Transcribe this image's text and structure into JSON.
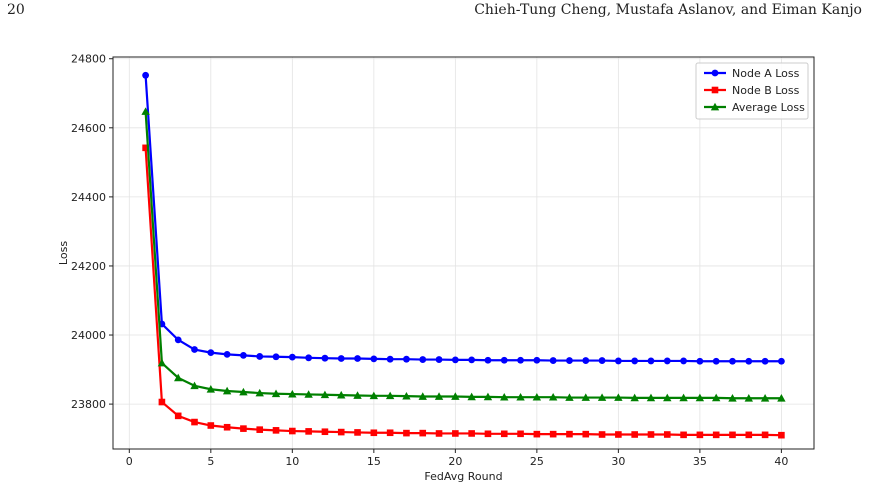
{
  "header": {
    "page_number": "20",
    "authors": "Chieh-Tung Cheng, Mustafa Aslanov, and Eiman Kanjo"
  },
  "chart_data": {
    "type": "line",
    "title": "",
    "xlabel": "FedAvg Round",
    "ylabel": "Loss",
    "xlim": [
      -1,
      42
    ],
    "ylim": [
      23670,
      24805
    ],
    "xticks": [
      0,
      5,
      10,
      15,
      20,
      25,
      30,
      35,
      40
    ],
    "yticks": [
      23800,
      24000,
      24200,
      24400,
      24600,
      24800
    ],
    "grid": true,
    "legend_position": "top-right",
    "x": [
      1,
      2,
      3,
      4,
      5,
      6,
      7,
      8,
      9,
      10,
      11,
      12,
      13,
      14,
      15,
      16,
      17,
      18,
      19,
      20,
      21,
      22,
      23,
      24,
      25,
      26,
      27,
      28,
      29,
      30,
      31,
      32,
      33,
      34,
      35,
      36,
      37,
      38,
      39,
      40
    ],
    "series": [
      {
        "name": "Node A Loss",
        "color": "#0000ff",
        "marker": "circle",
        "values": [
          24752,
          24032,
          23986,
          23958,
          23949,
          23944,
          23941,
          23938,
          23937,
          23936,
          23934,
          23933,
          23932,
          23932,
          23931,
          23930,
          23930,
          23929,
          23929,
          23928,
          23928,
          23927,
          23927,
          23927,
          23927,
          23926,
          23926,
          23926,
          23926,
          23925,
          23925,
          23925,
          23925,
          23925,
          23924,
          23924,
          23924,
          23924,
          23924,
          23924
        ]
      },
      {
        "name": "Node B Loss",
        "color": "#ff0000",
        "marker": "square",
        "values": [
          24542,
          23806,
          23766,
          23748,
          23738,
          23733,
          23729,
          23726,
          23724,
          23722,
          23721,
          23720,
          23719,
          23718,
          23717,
          23717,
          23716,
          23716,
          23715,
          23715,
          23715,
          23714,
          23714,
          23714,
          23713,
          23713,
          23713,
          23713,
          23712,
          23712,
          23712,
          23712,
          23712,
          23711,
          23711,
          23711,
          23711,
          23711,
          23711,
          23710
        ]
      },
      {
        "name": "Average Loss",
        "color": "#008000",
        "marker": "triangle",
        "values": [
          24647,
          23919,
          23876,
          23853,
          23843,
          23838,
          23835,
          23832,
          23830,
          23829,
          23828,
          23827,
          23826,
          23825,
          23824,
          23824,
          23823,
          23822,
          23822,
          23822,
          23821,
          23821,
          23820,
          23820,
          23820,
          23820,
          23819,
          23819,
          23819,
          23819,
          23818,
          23818,
          23818,
          23818,
          23818,
          23818,
          23817,
          23817,
          23817,
          23817
        ]
      }
    ]
  }
}
